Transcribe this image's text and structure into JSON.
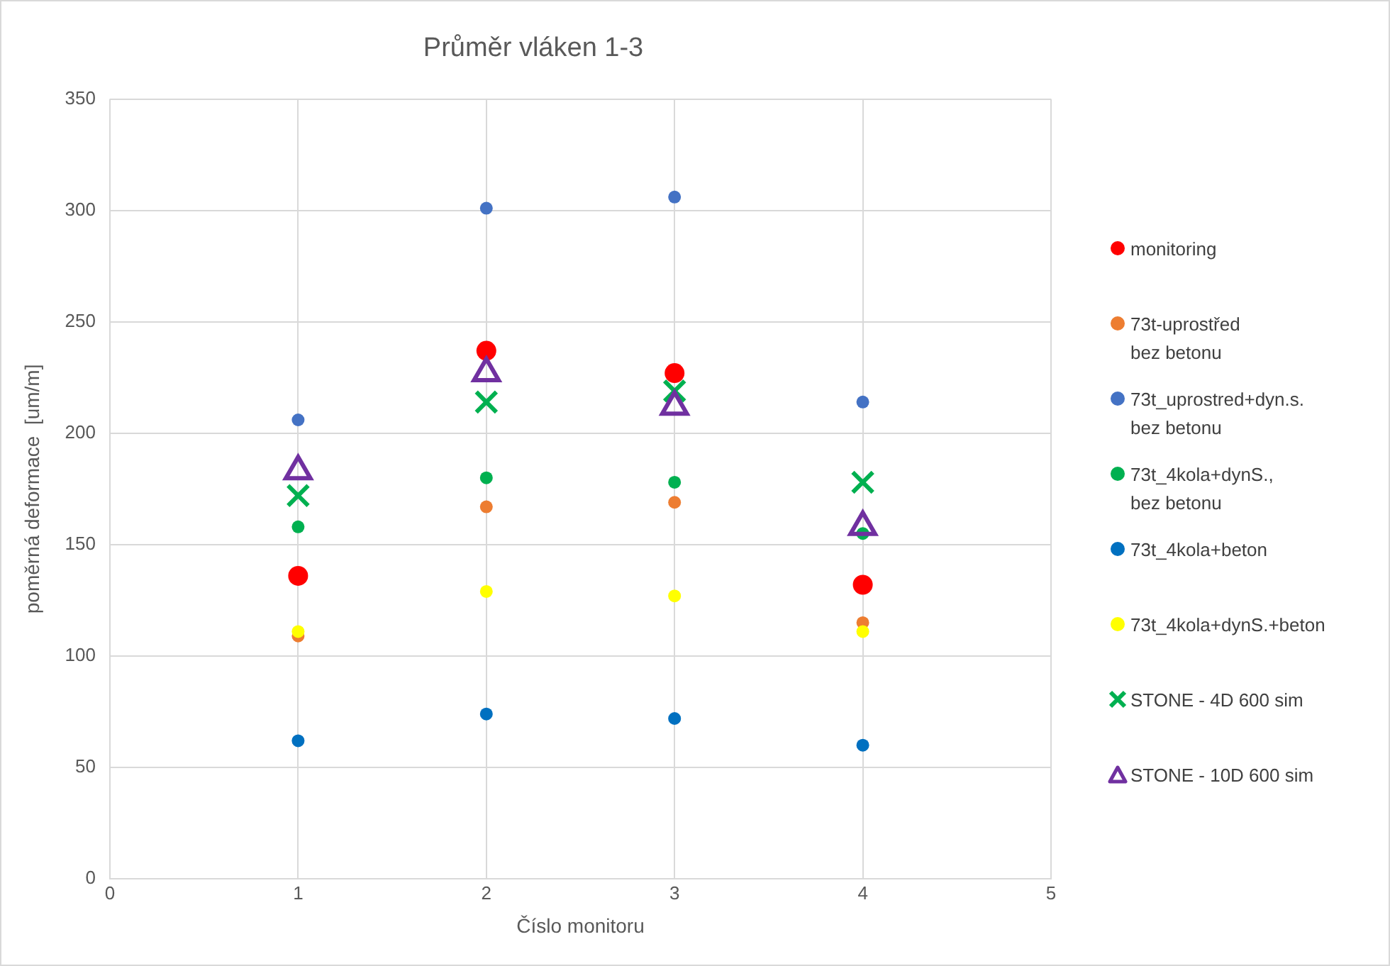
{
  "chart_data": {
    "type": "scatter",
    "title": "Průměr vláken 1-3",
    "xlabel": "Číslo monitoru",
    "ylabel": "poměrná deformace  [um/m]",
    "x": [
      1,
      2,
      3,
      4
    ],
    "xlim": [
      0,
      5
    ],
    "xticks": [
      0,
      1,
      2,
      3,
      4,
      5
    ],
    "ylim": [
      0,
      350
    ],
    "yticks": [
      0,
      50,
      100,
      150,
      200,
      250,
      300,
      350
    ],
    "grid": true,
    "legend": "right",
    "marker": "circle",
    "series": [
      {
        "name": "monitoring",
        "color": "#ff0000",
        "values": [
          136,
          237,
          227,
          132
        ]
      },
      {
        "name": "73t-uprostřed\nbez betonu",
        "color": "#ed7d31",
        "values": [
          109,
          167,
          169,
          115
        ]
      },
      {
        "name": "73t_uprostred+dyn.s.\nbez betonu",
        "color": "#4472c4",
        "values": [
          206,
          301,
          306,
          214
        ]
      },
      {
        "name": "73t_4kola+dynS.,\nbez betonu",
        "color": "#00b050",
        "values": [
          158,
          180,
          178,
          155
        ]
      },
      {
        "name": "73t_4kola+beton",
        "color": "#0070c0",
        "values": [
          62,
          74,
          72,
          60
        ]
      },
      {
        "name": "73t_4kola+dynS.+beton",
        "color": "#ffff00",
        "values": [
          111,
          129,
          127,
          111
        ]
      },
      {
        "name": "STONE - 4D 600 sim",
        "color": "#00b050",
        "marker": "cross",
        "values": [
          172,
          214,
          219,
          178
        ]
      },
      {
        "name": "STONE - 10D 600 sim",
        "color": "#7030a0",
        "marker": "triangle",
        "values": [
          183,
          227,
          212,
          158
        ]
      }
    ]
  }
}
